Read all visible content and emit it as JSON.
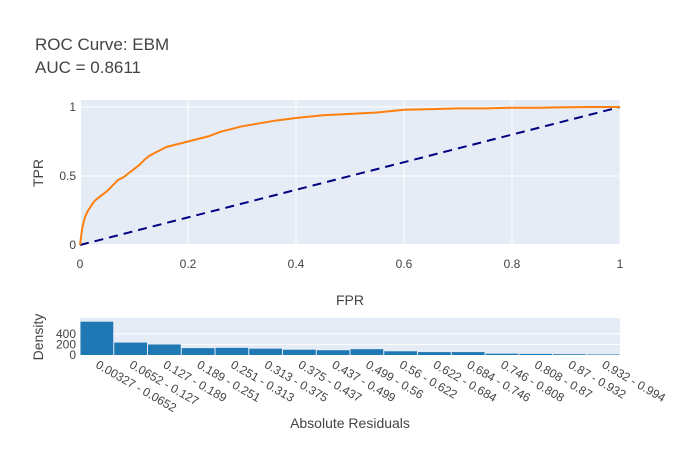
{
  "chart_data": [
    {
      "type": "line",
      "title": "ROC Curve: EBM",
      "subtitle": "AUC = 0.8611",
      "xlabel": "FPR",
      "ylabel": "TPR",
      "xlim": [
        0,
        1
      ],
      "ylim": [
        0,
        1
      ],
      "xticks": [
        "0",
        "0.2",
        "0.4",
        "0.6",
        "0.8",
        "1"
      ],
      "yticks": [
        "0",
        "0.5",
        "1"
      ],
      "grid": true,
      "series": [
        {
          "color": "#ff7f0e",
          "style": "solid",
          "x": [
            0,
            0.002,
            0.004,
            0.007,
            0.01,
            0.015,
            0.02,
            0.025,
            0.03,
            0.04,
            0.05,
            0.06,
            0.07,
            0.08,
            0.09,
            0.1,
            0.11,
            0.12,
            0.13,
            0.14,
            0.15,
            0.16,
            0.17,
            0.18,
            0.2,
            0.22,
            0.24,
            0.26,
            0.28,
            0.3,
            0.33,
            0.36,
            0.4,
            0.45,
            0.5,
            0.55,
            0.6,
            0.65,
            0.7,
            0.75,
            0.8,
            0.85,
            0.9,
            0.95,
            1.0
          ],
          "y": [
            0,
            0.06,
            0.12,
            0.17,
            0.21,
            0.25,
            0.28,
            0.31,
            0.33,
            0.36,
            0.39,
            0.43,
            0.47,
            0.49,
            0.52,
            0.55,
            0.58,
            0.62,
            0.65,
            0.67,
            0.69,
            0.71,
            0.72,
            0.73,
            0.75,
            0.77,
            0.79,
            0.82,
            0.84,
            0.86,
            0.88,
            0.9,
            0.92,
            0.94,
            0.95,
            0.96,
            0.98,
            0.985,
            0.99,
            0.99,
            0.995,
            0.995,
            0.998,
            1.0,
            1.0
          ]
        },
        {
          "color": "#000080",
          "style": "dash",
          "x": [
            0,
            1
          ],
          "y": [
            0,
            1
          ]
        }
      ]
    },
    {
      "type": "bar",
      "xlabel": "Absolute Residuals",
      "ylabel": "Density",
      "ylim": [
        0,
        700
      ],
      "yticks": [
        "0",
        "200",
        "400"
      ],
      "bar_color": "#1f77b4",
      "categories": [
        "0.00327 - 0.0652",
        "0.0652 - 0.127",
        "0.127 - 0.189",
        "0.189 - 0.251",
        "0.251 - 0.313",
        "0.313 - 0.375",
        "0.375 - 0.437",
        "0.437 - 0.499",
        "0.499 - 0.56",
        "0.56 - 0.622",
        "0.622 - 0.684",
        "0.684 - 0.746",
        "0.746 - 0.808",
        "0.808 - 0.87",
        "0.87 - 0.932",
        "0.932 - 0.994"
      ],
      "values": [
        630,
        235,
        200,
        130,
        135,
        120,
        100,
        90,
        110,
        70,
        55,
        55,
        25,
        20,
        15,
        10
      ]
    }
  ]
}
